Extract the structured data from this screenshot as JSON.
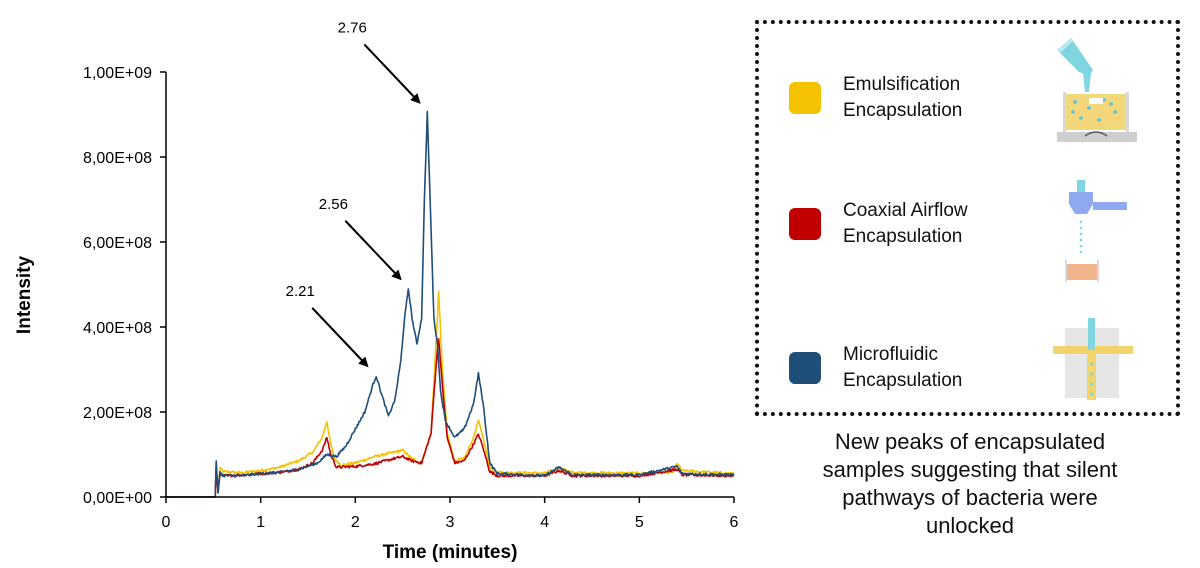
{
  "chart_data": {
    "type": "line",
    "xlabel": "Time (minutes)",
    "ylabel": "Intensity",
    "xlim": [
      0,
      6
    ],
    "ylim": [
      0,
      1000000000
    ],
    "x_ticks": [
      0,
      1,
      2,
      3,
      4,
      5,
      6
    ],
    "x_tick_labels": [
      "0",
      "1",
      "2",
      "3",
      "4",
      "5",
      "6"
    ],
    "y_ticks": [
      0,
      200000000,
      400000000,
      600000000,
      800000000,
      1000000000
    ],
    "y_tick_labels": [
      "0,00E+00",
      "2,00E+08",
      "4,00E+08",
      "6,00E+08",
      "8,00E+08",
      "1,00E+09"
    ],
    "grid": false,
    "series": [
      {
        "name": "Emulsification Encapsulation",
        "color": "#F5C200",
        "points": [
          [
            0,
            0
          ],
          [
            0.52,
            0
          ],
          [
            0.53,
            75000000
          ],
          [
            0.55,
            10000000
          ],
          [
            0.57,
            70000000
          ],
          [
            0.6,
            60000000
          ],
          [
            0.8,
            57000000
          ],
          [
            1.0,
            62000000
          ],
          [
            1.2,
            70000000
          ],
          [
            1.4,
            85000000
          ],
          [
            1.55,
            105000000
          ],
          [
            1.65,
            140000000
          ],
          [
            1.7,
            178000000
          ],
          [
            1.73,
            135000000
          ],
          [
            1.78,
            90000000
          ],
          [
            1.85,
            75000000
          ],
          [
            2.0,
            80000000
          ],
          [
            2.2,
            95000000
          ],
          [
            2.4,
            105000000
          ],
          [
            2.5,
            110000000
          ],
          [
            2.6,
            90000000
          ],
          [
            2.7,
            80000000
          ],
          [
            2.8,
            150000000
          ],
          [
            2.85,
            350000000
          ],
          [
            2.88,
            480000000
          ],
          [
            2.92,
            300000000
          ],
          [
            2.97,
            150000000
          ],
          [
            3.05,
            85000000
          ],
          [
            3.15,
            90000000
          ],
          [
            3.25,
            140000000
          ],
          [
            3.3,
            180000000
          ],
          [
            3.35,
            140000000
          ],
          [
            3.42,
            70000000
          ],
          [
            3.5,
            58000000
          ],
          [
            4.0,
            56000000
          ],
          [
            4.15,
            68000000
          ],
          [
            4.3,
            57000000
          ],
          [
            5.0,
            56000000
          ],
          [
            5.35,
            58000000
          ],
          [
            5.4,
            80000000
          ],
          [
            5.45,
            62000000
          ],
          [
            6.0,
            55000000
          ]
        ]
      },
      {
        "name": "Coaxial Airflow Encapsulation",
        "color": "#C00000",
        "points": [
          [
            0,
            0
          ],
          [
            0.52,
            0
          ],
          [
            0.53,
            70000000
          ],
          [
            0.55,
            10000000
          ],
          [
            0.57,
            55000000
          ],
          [
            0.6,
            50000000
          ],
          [
            0.8,
            52000000
          ],
          [
            1.0,
            55000000
          ],
          [
            1.2,
            58000000
          ],
          [
            1.4,
            65000000
          ],
          [
            1.55,
            80000000
          ],
          [
            1.65,
            110000000
          ],
          [
            1.7,
            140000000
          ],
          [
            1.74,
            100000000
          ],
          [
            1.8,
            70000000
          ],
          [
            2.0,
            72000000
          ],
          [
            2.2,
            78000000
          ],
          [
            2.4,
            90000000
          ],
          [
            2.5,
            95000000
          ],
          [
            2.6,
            85000000
          ],
          [
            2.7,
            80000000
          ],
          [
            2.8,
            150000000
          ],
          [
            2.85,
            300000000
          ],
          [
            2.88,
            375000000
          ],
          [
            2.92,
            260000000
          ],
          [
            2.97,
            140000000
          ],
          [
            3.05,
            80000000
          ],
          [
            3.15,
            85000000
          ],
          [
            3.25,
            125000000
          ],
          [
            3.3,
            148000000
          ],
          [
            3.35,
            115000000
          ],
          [
            3.42,
            60000000
          ],
          [
            3.5,
            50000000
          ],
          [
            4.0,
            50000000
          ],
          [
            4.15,
            62000000
          ],
          [
            4.3,
            50000000
          ],
          [
            5.0,
            50000000
          ],
          [
            5.4,
            65000000
          ],
          [
            5.45,
            52000000
          ],
          [
            6.0,
            50000000
          ]
        ]
      },
      {
        "name": "Microfluidic Encapsulation",
        "color": "#1F4E79",
        "points": [
          [
            0,
            0
          ],
          [
            0.52,
            0
          ],
          [
            0.53,
            85000000
          ],
          [
            0.55,
            10000000
          ],
          [
            0.57,
            60000000
          ],
          [
            0.6,
            50000000
          ],
          [
            0.8,
            50000000
          ],
          [
            1.0,
            55000000
          ],
          [
            1.2,
            58000000
          ],
          [
            1.4,
            65000000
          ],
          [
            1.6,
            80000000
          ],
          [
            1.7,
            100000000
          ],
          [
            1.8,
            95000000
          ],
          [
            1.9,
            120000000
          ],
          [
            2.0,
            160000000
          ],
          [
            2.1,
            200000000
          ],
          [
            2.18,
            260000000
          ],
          [
            2.22,
            285000000
          ],
          [
            2.28,
            240000000
          ],
          [
            2.35,
            190000000
          ],
          [
            2.42,
            230000000
          ],
          [
            2.48,
            320000000
          ],
          [
            2.52,
            420000000
          ],
          [
            2.56,
            490000000
          ],
          [
            2.6,
            420000000
          ],
          [
            2.65,
            360000000
          ],
          [
            2.7,
            420000000
          ],
          [
            2.73,
            700000000
          ],
          [
            2.76,
            905000000
          ],
          [
            2.79,
            700000000
          ],
          [
            2.83,
            420000000
          ],
          [
            2.87,
            355000000
          ],
          [
            2.9,
            250000000
          ],
          [
            2.95,
            180000000
          ],
          [
            3.05,
            140000000
          ],
          [
            3.15,
            160000000
          ],
          [
            3.25,
            220000000
          ],
          [
            3.3,
            290000000
          ],
          [
            3.35,
            220000000
          ],
          [
            3.42,
            80000000
          ],
          [
            3.5,
            55000000
          ],
          [
            4.0,
            50000000
          ],
          [
            4.15,
            70000000
          ],
          [
            4.3,
            52000000
          ],
          [
            5.0,
            52000000
          ],
          [
            5.4,
            72000000
          ],
          [
            5.45,
            55000000
          ],
          [
            6.0,
            52000000
          ]
        ]
      }
    ],
    "annotations": [
      {
        "label": "2.76",
        "x": 2.76,
        "y": 905000000
      },
      {
        "label": "2.56",
        "x": 2.56,
        "y": 490000000
      },
      {
        "label": "2.21",
        "x": 2.21,
        "y": 285000000
      }
    ],
    "legend_position": "right"
  },
  "legend": {
    "items": [
      {
        "line1": "Emulsification",
        "line2": "Encapsulation",
        "color": "#F5C200",
        "icon": "emulsification-icon"
      },
      {
        "line1": "Coaxial Airflow",
        "line2": "Encapsulation",
        "color": "#C00000",
        "icon": "coaxial-airflow-icon"
      },
      {
        "line1": "Microfluidic",
        "line2": "Encapsulation",
        "color": "#1F4E79",
        "icon": "microfluidic-icon"
      }
    ]
  },
  "caption": {
    "lines": [
      "New peaks of encapsulated",
      "samples suggesting that silent",
      "pathways of bacteria were",
      "unlocked"
    ]
  }
}
